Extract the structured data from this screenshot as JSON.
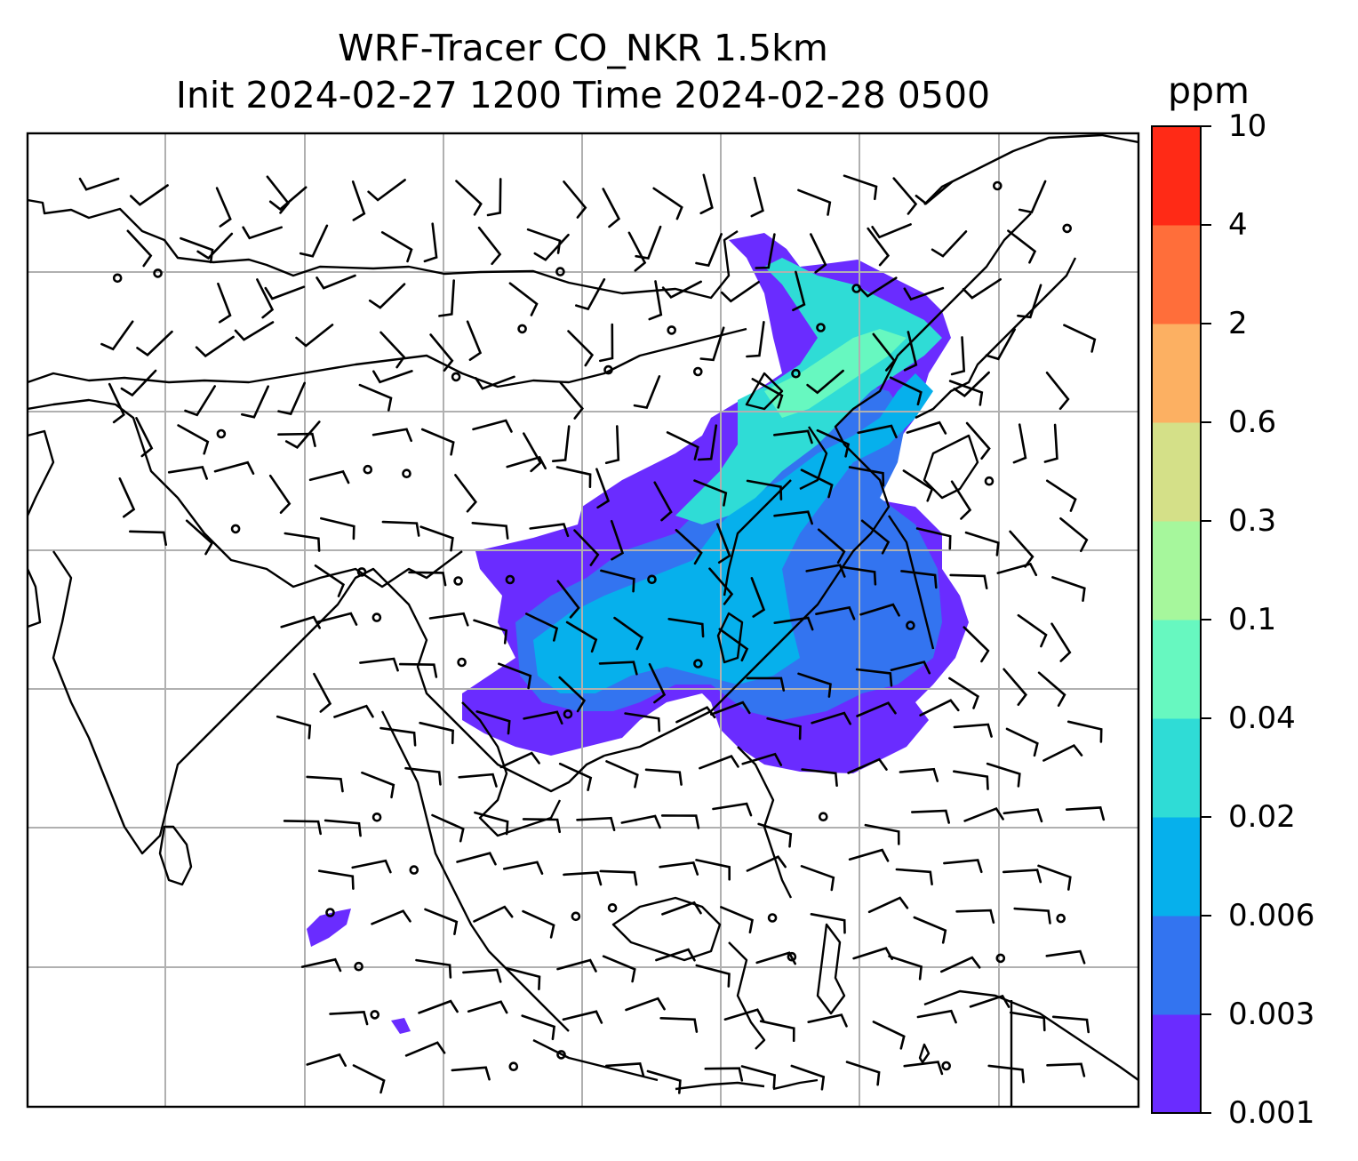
{
  "title_line1": "WRF-Tracer CO_NKR 1.5km",
  "title_line2": "Init 2024-02-27 1200 Time 2024-02-28 0500",
  "colorbar": {
    "unit": "ppm",
    "levels": [
      "0.001",
      "0.003",
      "0.006",
      "0.02",
      "0.04",
      "0.1",
      "0.3",
      "0.6",
      "2",
      "4",
      "10"
    ],
    "colors": [
      "#6a2cff",
      "#3374f0",
      "#06b0ec",
      "#2fdcd6",
      "#67f8c0",
      "#a6f79c",
      "#d4e088",
      "#fcb062",
      "#ff6e3a",
      "#ff2a16"
    ]
  },
  "map": {
    "gridline_color": "#b0b0b0",
    "coast_color": "#000000",
    "feature": "wind barbs over SE Asia with CO tracer plume"
  }
}
